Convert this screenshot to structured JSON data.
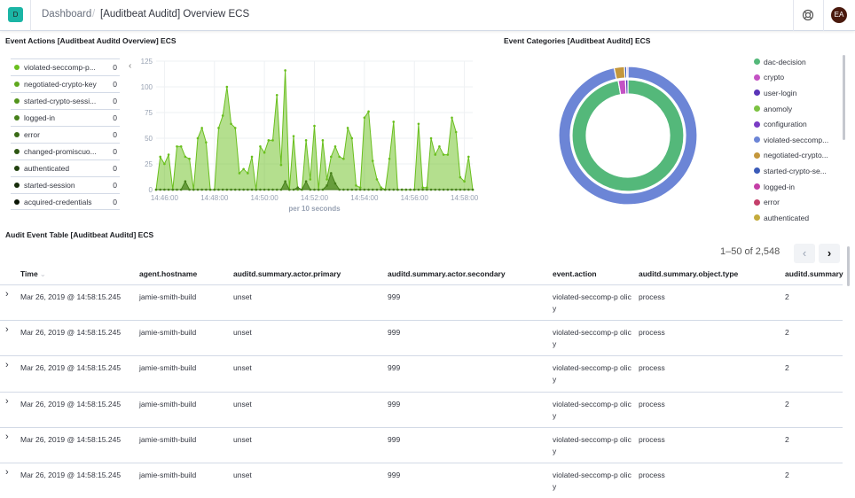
{
  "header": {
    "app_badge": "D",
    "breadcrumb_root": "Dashboard",
    "separator": "/",
    "page_title": "[Auditbeat Auditd] Overview ECS",
    "user_initials": "EA",
    "help_icon": "lifebuoy-icon"
  },
  "event_actions": {
    "title": "Event Actions [Auditbeat Auditd Overview] ECS",
    "legend": [
      {
        "label": "violated-seccomp-p...",
        "value": "0",
        "color": "#6abf1e"
      },
      {
        "label": "negotiated-crypto-key",
        "value": "0",
        "color": "#5fa81e"
      },
      {
        "label": "started-crypto-sessi...",
        "value": "0",
        "color": "#53941c"
      },
      {
        "label": "logged-in",
        "value": "0",
        "color": "#46801a"
      },
      {
        "label": "error",
        "value": "0",
        "color": "#3a6b17"
      },
      {
        "label": "changed-promiscuo...",
        "value": "0",
        "color": "#2e5613"
      },
      {
        "label": "authenticated",
        "value": "0",
        "color": "#22410f"
      },
      {
        "label": "started-session",
        "value": "0",
        "color": "#162c0a"
      },
      {
        "label": "acquired-credentials",
        "value": "0",
        "color": "#0a1505"
      }
    ],
    "collapse_icon": "chevron-left-icon"
  },
  "chart_data": [
    {
      "type": "area",
      "xlabel": "per 10 seconds",
      "ylabel": "",
      "ylim": [
        0,
        125
      ],
      "yticks": [
        "0",
        "25",
        "50",
        "75",
        "100",
        "125"
      ],
      "xticks": [
        "14:46:00",
        "14:48:00",
        "14:50:00",
        "14:52:00",
        "14:54:00",
        "14:56:00",
        "14:58:00"
      ],
      "grid": true,
      "stacked": true,
      "x": [
        "14:45:40",
        "14:45:50",
        "14:46:00",
        "14:46:10",
        "14:46:20",
        "14:46:30",
        "14:46:40",
        "14:46:50",
        "14:47:00",
        "14:47:10",
        "14:47:20",
        "14:47:30",
        "14:47:40",
        "14:47:50",
        "14:48:00",
        "14:48:10",
        "14:48:20",
        "14:48:30",
        "14:48:40",
        "14:48:50",
        "14:49:00",
        "14:49:10",
        "14:49:20",
        "14:49:30",
        "14:49:40",
        "14:49:50",
        "14:50:00",
        "14:50:10",
        "14:50:20",
        "14:50:30",
        "14:50:40",
        "14:50:50",
        "14:51:00",
        "14:51:10",
        "14:51:20",
        "14:51:30",
        "14:51:40",
        "14:51:50",
        "14:52:00",
        "14:52:10",
        "14:52:20",
        "14:52:30",
        "14:52:40",
        "14:52:50",
        "14:53:00",
        "14:53:10",
        "14:53:20",
        "14:53:30",
        "14:53:40",
        "14:53:50",
        "14:54:00",
        "14:54:10",
        "14:54:20",
        "14:54:30",
        "14:54:40",
        "14:54:50",
        "14:55:00",
        "14:55:10",
        "14:55:20",
        "14:55:30",
        "14:55:40",
        "14:55:50",
        "14:56:00",
        "14:56:10",
        "14:56:20",
        "14:56:30",
        "14:56:40",
        "14:56:50",
        "14:57:00",
        "14:57:10",
        "14:57:20",
        "14:57:30",
        "14:57:40",
        "14:57:50",
        "14:58:00",
        "14:58:10",
        "14:58:20"
      ],
      "series": [
        {
          "color": "#6abf1e",
          "values": [
            0,
            32,
            25,
            34,
            0,
            42,
            42,
            32,
            30,
            0,
            50,
            60,
            46,
            0,
            0,
            60,
            72,
            100,
            64,
            60,
            16,
            20,
            16,
            32,
            0,
            42,
            36,
            48,
            48,
            92,
            24,
            116,
            0,
            52,
            0,
            0,
            48,
            10,
            62,
            0,
            48,
            10,
            32,
            42,
            32,
            30,
            60,
            50,
            4,
            2,
            70,
            76,
            28,
            10,
            2,
            0,
            30,
            66,
            0,
            0,
            0,
            0,
            0,
            64,
            2,
            2,
            50,
            34,
            42,
            34,
            34,
            70,
            56,
            12,
            8,
            32,
            0
          ]
        },
        {
          "color": "#46801a",
          "values": [
            0,
            0,
            0,
            0,
            0,
            0,
            0,
            8,
            0,
            0,
            0,
            0,
            0,
            0,
            0,
            0,
            0,
            0,
            0,
            0,
            0,
            0,
            0,
            0,
            0,
            0,
            0,
            0,
            0,
            0,
            0,
            8,
            0,
            0,
            2,
            0,
            8,
            0,
            0,
            0,
            0,
            4,
            16,
            6,
            0,
            0,
            0,
            0,
            0,
            0,
            0,
            0,
            0,
            0,
            0,
            0,
            0,
            0,
            0,
            0,
            0,
            0,
            0,
            0,
            0,
            0,
            0,
            0,
            0,
            0,
            0,
            0,
            0,
            0,
            0,
            0,
            0
          ]
        }
      ]
    },
    {
      "type": "pie",
      "donut": true,
      "rings": [
        {
          "slices": [
            {
              "label": "dac-decision",
              "value": 97.2,
              "color": "#54b87a"
            },
            {
              "label": "crypto",
              "value": 2.1,
              "color": "#c452c4"
            },
            {
              "label": "user-login",
              "value": 0.7,
              "color": "#5a35b8"
            }
          ]
        },
        {
          "slices": [
            {
              "label": "violated-seccomp...",
              "value": 96.8,
              "color": "#6c85d6"
            },
            {
              "label": "negotiated-crypto...",
              "value": 2.4,
              "color": "#c4973c"
            },
            {
              "label": "started-crypto-se...",
              "value": 0.5,
              "color": "#3b5bb8"
            },
            {
              "label": "logged-in",
              "value": 0.3,
              "color": "#c43fa6"
            }
          ]
        }
      ]
    }
  ],
  "event_categories": {
    "title": "Event Categories [Auditbeat Auditd] ECS",
    "legend": [
      {
        "label": "dac-decision",
        "color": "#54b87a"
      },
      {
        "label": "crypto",
        "color": "#c452c4"
      },
      {
        "label": "user-login",
        "color": "#5a35b8"
      },
      {
        "label": "anomoly",
        "color": "#7cc242"
      },
      {
        "label": "configuration",
        "color": "#7a3cc4"
      },
      {
        "label": "violated-seccomp...",
        "color": "#6c85d6"
      },
      {
        "label": "negotiated-crypto...",
        "color": "#c4973c"
      },
      {
        "label": "started-crypto-se...",
        "color": "#3b5bb8"
      },
      {
        "label": "logged-in",
        "color": "#c43fa6"
      },
      {
        "label": "error",
        "color": "#c43f6a"
      },
      {
        "label": "authenticated",
        "color": "#c4ab3c"
      }
    ]
  },
  "table": {
    "title": "Audit Event Table [Auditbeat Auditd] ECS",
    "pagination": "1–50 of 2,548",
    "columns": [
      "Time",
      "agent.hostname",
      "auditd.summary.actor.primary",
      "auditd.summary.actor.secondary",
      "event.action",
      "auditd.summary.object.type",
      "auditd.summary"
    ],
    "sort_indicator": "⌄",
    "rows": [
      [
        "Mar 26, 2019 @ 14:58:15.245",
        "jamie-smith-build",
        "unset",
        "999",
        "violated-seccomp-p olicy",
        "process",
        "2"
      ],
      [
        "Mar 26, 2019 @ 14:58:15.245",
        "jamie-smith-build",
        "unset",
        "999",
        "violated-seccomp-p olicy",
        "process",
        "2"
      ],
      [
        "Mar 26, 2019 @ 14:58:15.245",
        "jamie-smith-build",
        "unset",
        "999",
        "violated-seccomp-p olicy",
        "process",
        "2"
      ],
      [
        "Mar 26, 2019 @ 14:58:15.245",
        "jamie-smith-build",
        "unset",
        "999",
        "violated-seccomp-p olicy",
        "process",
        "2"
      ],
      [
        "Mar 26, 2019 @ 14:58:15.245",
        "jamie-smith-build",
        "unset",
        "999",
        "violated-seccomp-p olicy",
        "process",
        "2"
      ],
      [
        "Mar 26, 2019 @ 14:58:15.245",
        "jamie-smith-build",
        "unset",
        "999",
        "violated-seccomp-p olicy",
        "process",
        "2"
      ]
    ]
  }
}
